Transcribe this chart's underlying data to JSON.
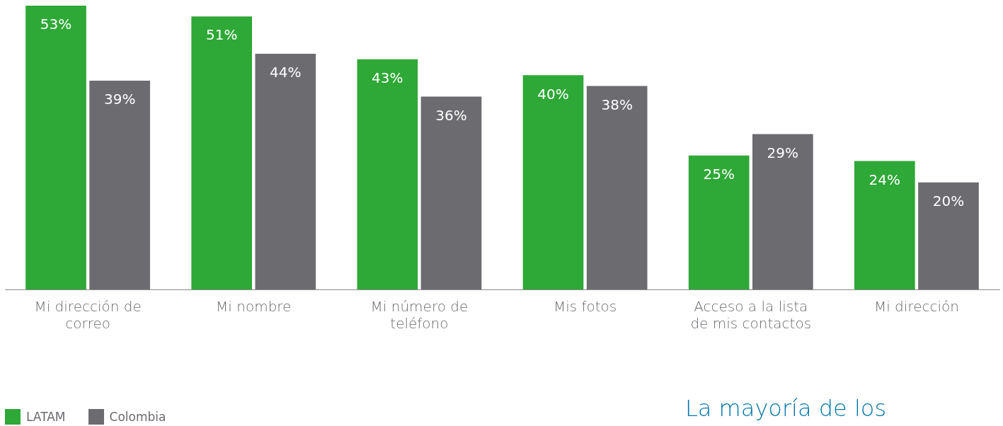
{
  "chart_data": {
    "type": "bar",
    "categories": [
      "Mi dirección de correo",
      "Mi nombre",
      "Mi número de teléfono",
      "Mis fotos",
      "Acceso a la lista de mis contactos",
      "Mi dirección"
    ],
    "series": [
      {
        "name": "LATAM",
        "color": "#2ea836",
        "values": [
          53,
          51,
          43,
          40,
          25,
          24
        ],
        "value_labels": [
          "53%",
          "51%",
          "43%",
          "40%",
          "25%",
          "24%"
        ]
      },
      {
        "name": "Colombia",
        "color": "#6b6b70",
        "values": [
          39,
          44,
          36,
          38,
          29,
          20
        ],
        "value_labels": [
          "39%",
          "44%",
          "36%",
          "38%",
          "29%",
          "20%"
        ]
      }
    ],
    "legend": "bottom left",
    "grid": false,
    "annotations": [
      "La mayoría de los"
    ]
  }
}
